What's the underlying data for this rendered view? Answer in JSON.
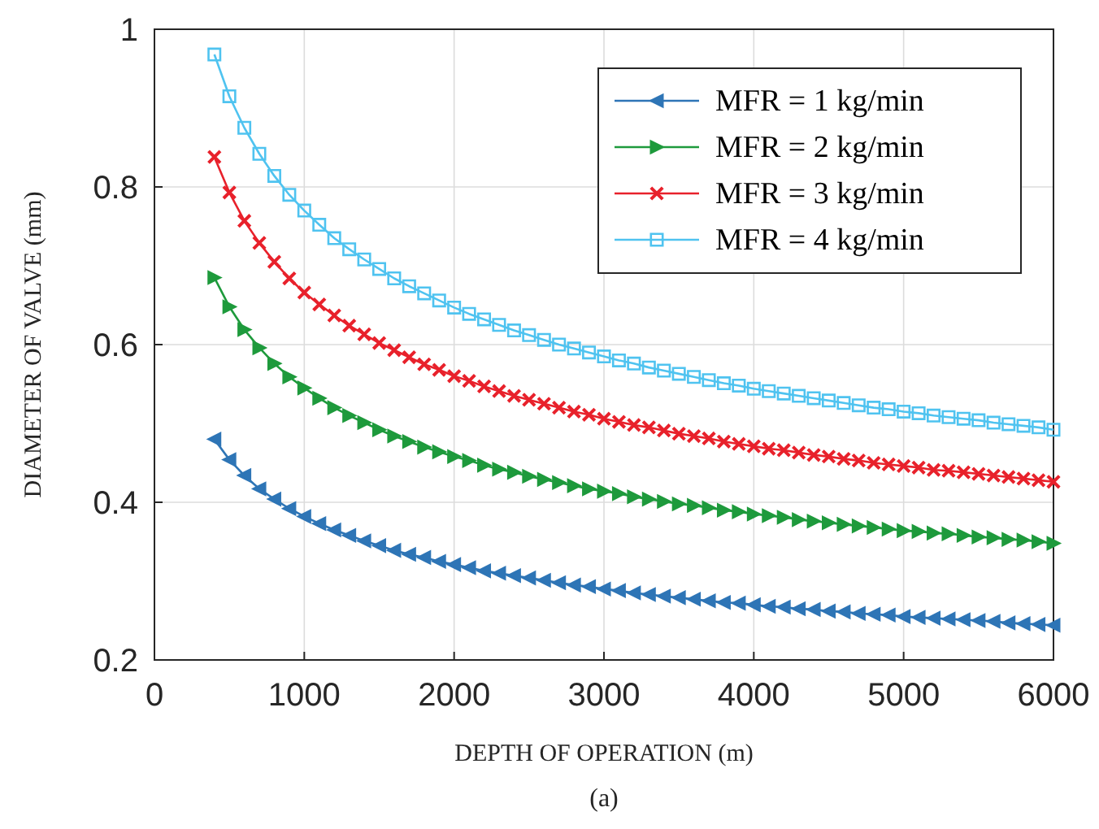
{
  "chart_data": {
    "type": "line",
    "xlabel": "DEPTH OF OPERATION (m)",
    "ylabel": "DIAMETER OF VALVE (mm)",
    "annotations": [
      "(a)"
    ],
    "x": [
      400,
      500,
      600,
      700,
      800,
      900,
      1000,
      1100,
      1200,
      1300,
      1400,
      1500,
      1600,
      1700,
      1800,
      1900,
      2000,
      2100,
      2200,
      2300,
      2400,
      2500,
      2600,
      2700,
      2800,
      2900,
      3000,
      3100,
      3200,
      3300,
      3400,
      3500,
      3600,
      3700,
      3800,
      3900,
      4000,
      4100,
      4200,
      4300,
      4400,
      4500,
      4600,
      4700,
      4800,
      4900,
      5000,
      5100,
      5200,
      5300,
      5400,
      5500,
      5600,
      5700,
      5800,
      5900,
      6000
    ],
    "series": [
      {
        "name": "MFR = 1 kg/min",
        "color": "#2e75b6",
        "marker": "triangle",
        "values": [
          0.48,
          0.454,
          0.434,
          0.417,
          0.404,
          0.392,
          0.382,
          0.373,
          0.365,
          0.358,
          0.351,
          0.345,
          0.339,
          0.334,
          0.33,
          0.325,
          0.321,
          0.317,
          0.313,
          0.31,
          0.307,
          0.304,
          0.301,
          0.298,
          0.295,
          0.293,
          0.29,
          0.288,
          0.285,
          0.283,
          0.281,
          0.279,
          0.277,
          0.275,
          0.273,
          0.272,
          0.27,
          0.268,
          0.267,
          0.265,
          0.264,
          0.262,
          0.261,
          0.259,
          0.258,
          0.257,
          0.255,
          0.254,
          0.253,
          0.252,
          0.251,
          0.25,
          0.249,
          0.247,
          0.246,
          0.245,
          0.244
        ]
      },
      {
        "name": "MFR = 2 kg/min",
        "color": "#1e9a3c",
        "marker": "triangle",
        "values": [
          0.685,
          0.648,
          0.619,
          0.596,
          0.576,
          0.559,
          0.545,
          0.532,
          0.52,
          0.51,
          0.501,
          0.492,
          0.484,
          0.477,
          0.47,
          0.464,
          0.458,
          0.453,
          0.447,
          0.442,
          0.438,
          0.433,
          0.429,
          0.425,
          0.421,
          0.417,
          0.414,
          0.411,
          0.407,
          0.404,
          0.401,
          0.398,
          0.396,
          0.393,
          0.39,
          0.388,
          0.385,
          0.383,
          0.381,
          0.378,
          0.376,
          0.374,
          0.372,
          0.37,
          0.368,
          0.366,
          0.364,
          0.363,
          0.361,
          0.36,
          0.358,
          0.356,
          0.355,
          0.353,
          0.352,
          0.35,
          0.348
        ]
      },
      {
        "name": "MFR = 3 kg/min",
        "color": "#e8212b",
        "marker": "cross",
        "values": [
          0.838,
          0.793,
          0.757,
          0.729,
          0.705,
          0.684,
          0.666,
          0.651,
          0.637,
          0.624,
          0.613,
          0.602,
          0.593,
          0.584,
          0.575,
          0.568,
          0.56,
          0.554,
          0.547,
          0.541,
          0.535,
          0.53,
          0.525,
          0.52,
          0.515,
          0.511,
          0.506,
          0.502,
          0.498,
          0.495,
          0.491,
          0.487,
          0.484,
          0.481,
          0.477,
          0.474,
          0.471,
          0.468,
          0.466,
          0.463,
          0.46,
          0.458,
          0.455,
          0.453,
          0.45,
          0.448,
          0.446,
          0.444,
          0.441,
          0.44,
          0.438,
          0.436,
          0.434,
          0.432,
          0.43,
          0.428,
          0.426
        ]
      },
      {
        "name": "MFR = 4 kg/min",
        "color": "#4fc3f0",
        "marker": "square",
        "values": [
          0.968,
          0.915,
          0.875,
          0.842,
          0.814,
          0.79,
          0.77,
          0.752,
          0.735,
          0.721,
          0.708,
          0.696,
          0.684,
          0.674,
          0.665,
          0.656,
          0.647,
          0.639,
          0.632,
          0.625,
          0.618,
          0.612,
          0.606,
          0.6,
          0.595,
          0.59,
          0.585,
          0.58,
          0.576,
          0.571,
          0.567,
          0.563,
          0.559,
          0.555,
          0.551,
          0.548,
          0.544,
          0.541,
          0.538,
          0.535,
          0.532,
          0.529,
          0.526,
          0.523,
          0.52,
          0.518,
          0.515,
          0.513,
          0.51,
          0.508,
          0.506,
          0.504,
          0.501,
          0.499,
          0.497,
          0.495,
          0.492
        ]
      }
    ],
    "xlim": [
      0,
      6000
    ],
    "xticks": [
      0,
      1000,
      2000,
      3000,
      4000,
      5000,
      6000
    ],
    "ylim": [
      0.2,
      1
    ],
    "yticks": [
      0.2,
      0.4,
      0.6,
      0.8,
      1
    ],
    "grid": true,
    "legend": "top right",
    "line_style": "solid"
  }
}
